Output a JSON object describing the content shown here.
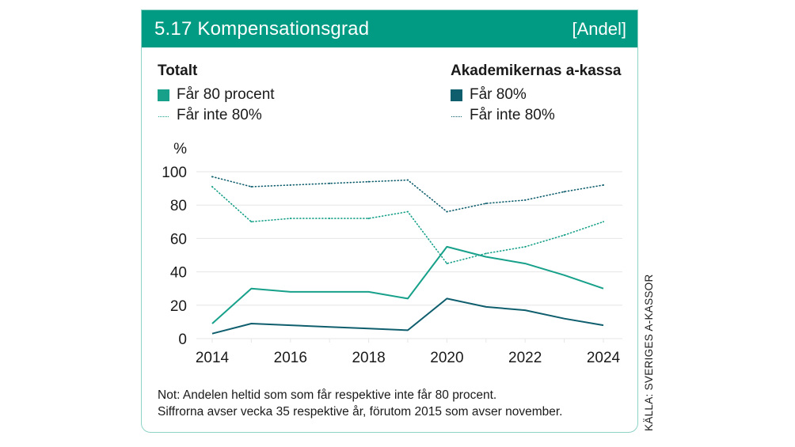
{
  "header": {
    "title": "5.17  Kompensationsgrad",
    "unit": "[Andel]"
  },
  "legend": {
    "groups": [
      {
        "title": "Totalt",
        "items": [
          {
            "label": "Får 80 procent",
            "style": "solid"
          },
          {
            "label": "Får inte 80%",
            "style": "dotted"
          }
        ]
      },
      {
        "title": "Akademikernas a-kassa",
        "items": [
          {
            "label": "Får 80%",
            "style": "solid"
          },
          {
            "label": "Får inte 80%",
            "style": "dotted"
          }
        ]
      }
    ]
  },
  "colors": {
    "header_bg": "#009b82",
    "totalt": "#17a08a",
    "akademikernas": "#0f5e6e",
    "border": "#8fd3c7",
    "grid": "#e6e6e6"
  },
  "note": {
    "line1": "Not: Andelen heltid som som får respektive inte får 80 procent.",
    "line2": "Siffrorna avser vecka 35 respektive år, förutom 2015 som avser november."
  },
  "source": "KÄLLA: SVERIGES A-KASSOR",
  "chart_data": {
    "type": "line",
    "title": "Kompensationsgrad",
    "ylabel": "%",
    "xlabel": "",
    "x": [
      2014,
      2015,
      2016,
      2017,
      2018,
      2019,
      2020,
      2021,
      2022,
      2023,
      2024
    ],
    "xticks": [
      "2014",
      "2016",
      "2018",
      "2020",
      "2022",
      "2024"
    ],
    "yticks": [
      "0",
      "20",
      "40",
      "60",
      "80",
      "100"
    ],
    "ylim": [
      0,
      100
    ],
    "grid": true,
    "legend_position": "top",
    "series": [
      {
        "name": "Totalt – Får 80 procent",
        "group": "totalt",
        "style": "solid",
        "values": [
          9,
          30,
          28,
          28,
          28,
          24,
          55,
          49,
          45,
          38,
          30
        ]
      },
      {
        "name": "Totalt – Får inte 80%",
        "group": "totalt",
        "style": "dotted",
        "values": [
          91,
          70,
          72,
          72,
          72,
          76,
          45,
          51,
          55,
          62,
          70
        ]
      },
      {
        "name": "Akademikernas a-kassa – Får 80%",
        "group": "akademikernas",
        "style": "solid",
        "values": [
          3,
          9,
          8,
          7,
          6,
          5,
          24,
          19,
          17,
          12,
          8
        ]
      },
      {
        "name": "Akademikernas a-kassa – Får inte 80%",
        "group": "akademikernas",
        "style": "dotted",
        "values": [
          97,
          91,
          92,
          93,
          94,
          95,
          76,
          81,
          83,
          88,
          92
        ]
      }
    ]
  }
}
